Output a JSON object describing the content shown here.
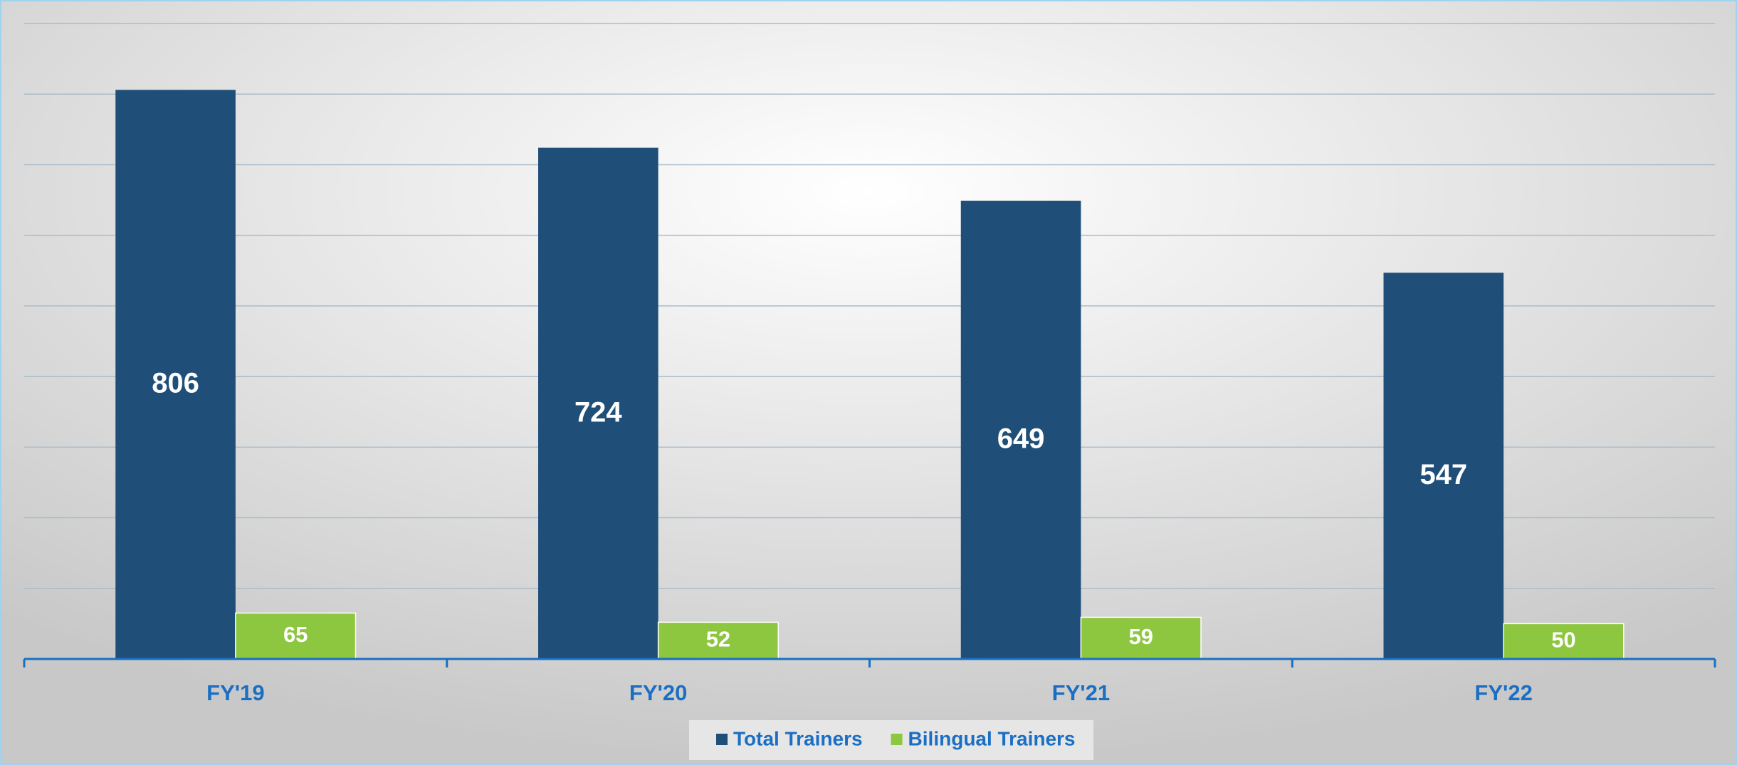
{
  "chart_data": {
    "type": "bar",
    "categories": [
      "FY'19",
      "FY'20",
      "FY'21",
      "FY'22"
    ],
    "series": [
      {
        "name": "Total Trainers",
        "color": "#1f4e79",
        "values": [
          806,
          724,
          649,
          547
        ]
      },
      {
        "name": "Bilingual Trainers",
        "color": "#8dc63f",
        "values": [
          65,
          52,
          59,
          50
        ]
      }
    ],
    "ylim": [
      0,
      900
    ],
    "yticks": [
      0,
      100,
      200,
      300,
      400,
      500,
      600,
      700,
      800,
      900
    ],
    "grid": true,
    "legend": "bottom"
  }
}
